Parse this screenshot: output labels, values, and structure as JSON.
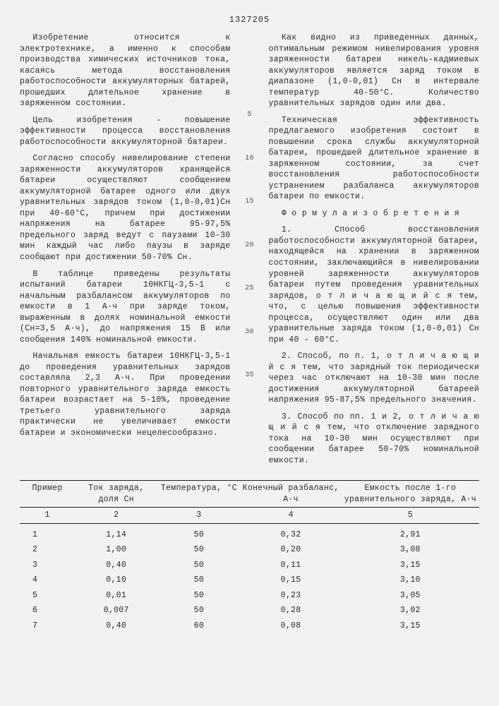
{
  "doc_number": "1327205",
  "left_paragraphs": [
    "Изобретение относится к электротехнике, а именно к способам производства химических источников тока, касаясь метода восстановления работоспособности аккумуляторных батарей, прошедших длительное хранение в заряженном состоянии.",
    "Цель изобретения - повышение эффективности процесса восстановления работоспособности аккумуляторной батареи.",
    "Согласно способу нивелирование степени заряженности аккумуляторов хранящейся батареи осуществляют сообщением аккумуляторной батарее одного или двух уравнительных зарядов током (1,0-0,01)Cн при 40-60°С, причем при достижении напряжения на батарее 95-97,5% предельного заряд ведут с паузами 10-30 мин каждый час либо паузы в заряде сообщают при достижении 50-70% Cн.",
    "В таблице приведены результаты испытаний батареи 10НКГЦ-3,5-1 с начальным разбалансом аккумуляторов по емкости в 1 А·ч при заряде током, выраженным в долях номинальной емкости (Cн=3,5 А·ч), до напряжения 15 В или сообщения 140% номинальной емкости.",
    "Начальная емкость батареи 10НКГЦ-3,5-1 до проведения уравнительных зарядов составляла 2,3 А·ч. При проведении повторного уравнительного заряда емкость батареи возрастает на 5-10%, проведение третьего уравнительного заряда практически не увеличивает емкости батареи и экономически нецелесообразно."
  ],
  "right_paragraphs": [
    "Как видно из приведенных данных, оптимальным режимом нивелирования уровня заряженности батареи никель-кадмиевых аккумуляторов является заряд током в диапазоне (1,0-0,01) Cн в интервале температур 40-50°С. Количество уравнительных зарядов один или два.",
    "Техническая эффективность предлагаемого изобретения состоит в повышении срока службы аккумуляторной батареи, прошедшей длительное хранение в заряженном состоянии, за счет восстановления работоспособности устранением разбаланса аккумуляторов батареи по емкости.",
    "Ф о р м у л а  и з о б р е т е н и я",
    "1. Способ восстановления работоспособности аккумуляторной батареи, находящейся на хранении в заряженном состоянии, заключающийся в нивелировании уровней заряженности аккумуляторов батареи путем проведения уравнительных зарядов, о т л и ч а ю щ и й с я  тем, что, с целью повышения эффективности процесса, осуществляют один или два уравнительные заряда током (1,0-0,01) Cн при 40 - 60°С.",
    "2. Способ, по п. 1, о т л и ч а ю щ и й с я  тем, что зарядный ток периодически через час отключают на 10-30 мин после достижения аккумуляторной батареей напряжения 95-87,5% предельного значения.",
    "3. Способ по пп. 1 и 2, о т л и ч а ю щ и й с я  тем, что отключение зарядного тока на 10-30 мин осуществляют при сообщении батарее 50-70% номинальной емкости."
  ],
  "line_nums": [
    "5",
    "10",
    "15",
    "20",
    "25",
    "30",
    "35"
  ],
  "table": {
    "headers": [
      "Пример",
      "Ток заряда, доля Cн",
      "Температура, °С",
      "Конечный разбаланс, А·ч",
      "Емкость после 1-го уравнительного заряда, А·ч"
    ],
    "groupnums": [
      "1",
      "2",
      "3",
      "4",
      "5"
    ],
    "rows": [
      [
        "1",
        "1,14",
        "50",
        "0,32",
        "2,91"
      ],
      [
        "2",
        "1,00",
        "50",
        "0,20",
        "3,08"
      ],
      [
        "3",
        "0,40",
        "50",
        "0,11",
        "3,15"
      ],
      [
        "4",
        "0,10",
        "50",
        "0,15",
        "3,10"
      ],
      [
        "5",
        "0,01",
        "50",
        "0,23",
        "3,05"
      ],
      [
        "6",
        "0,007",
        "50",
        "0,28",
        "3,02"
      ],
      [
        "7",
        "0,40",
        "60",
        "0,08",
        "3,15"
      ]
    ]
  }
}
